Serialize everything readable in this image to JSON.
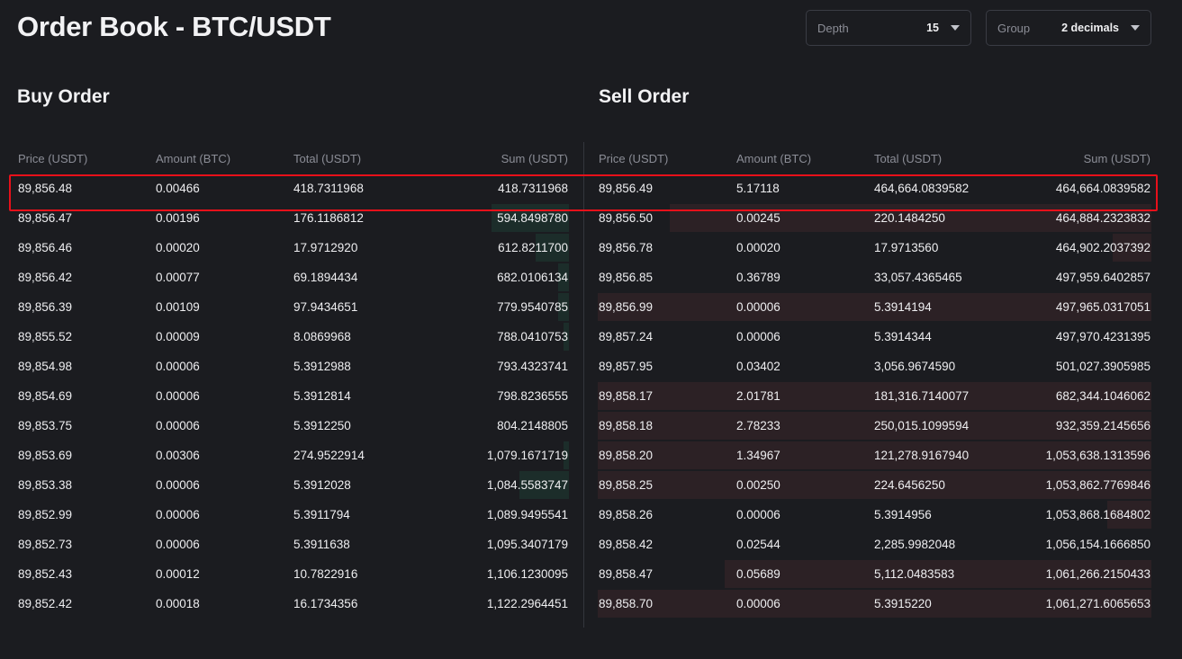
{
  "title": "Order Book - BTC/USDT",
  "controls": {
    "depth": {
      "label": "Depth",
      "value": "15"
    },
    "group": {
      "label": "Group",
      "value": "2 decimals"
    }
  },
  "buy": {
    "title": "Buy Order",
    "headers": [
      "Price (USDT)",
      "Amount (BTC)",
      "Total (USDT)",
      "Sum (USDT)"
    ],
    "depth_color": "#1c2d2a",
    "rows": [
      {
        "price": "89,856.48",
        "amount": "0.00466",
        "total": "418.7311968",
        "sum": "418.7311968",
        "depth": 0
      },
      {
        "price": "89,856.47",
        "amount": "0.00196",
        "total": "176.1186812",
        "sum": "594.8498780",
        "depth": 0.14
      },
      {
        "price": "89,856.46",
        "amount": "0.00020",
        "total": "17.9712920",
        "sum": "612.8211700",
        "depth": 0.06
      },
      {
        "price": "89,856.42",
        "amount": "0.00077",
        "total": "69.1894434",
        "sum": "682.0106134",
        "depth": 0.02
      },
      {
        "price": "89,856.39",
        "amount": "0.00109",
        "total": "97.9434651",
        "sum": "779.9540785",
        "depth": 0.02
      },
      {
        "price": "89,855.52",
        "amount": "0.00009",
        "total": "8.0869968",
        "sum": "788.0410753",
        "depth": 0.01
      },
      {
        "price": "89,854.98",
        "amount": "0.00006",
        "total": "5.3912988",
        "sum": "793.4323741",
        "depth": 0
      },
      {
        "price": "89,854.69",
        "amount": "0.00006",
        "total": "5.3912814",
        "sum": "798.8236555",
        "depth": 0
      },
      {
        "price": "89,853.75",
        "amount": "0.00006",
        "total": "5.3912250",
        "sum": "804.2148805",
        "depth": 0
      },
      {
        "price": "89,853.69",
        "amount": "0.00306",
        "total": "274.9522914",
        "sum": "1,079.1671719",
        "depth": 0.01
      },
      {
        "price": "89,853.38",
        "amount": "0.00006",
        "total": "5.3912028",
        "sum": "1,084.5583747",
        "depth": 0.09
      },
      {
        "price": "89,852.99",
        "amount": "0.00006",
        "total": "5.3911794",
        "sum": "1,089.9495541",
        "depth": 0
      },
      {
        "price": "89,852.73",
        "amount": "0.00006",
        "total": "5.3911638",
        "sum": "1,095.3407179",
        "depth": 0
      },
      {
        "price": "89,852.43",
        "amount": "0.00012",
        "total": "10.7822916",
        "sum": "1,106.1230095",
        "depth": 0
      },
      {
        "price": "89,852.42",
        "amount": "0.00018",
        "total": "16.1734356",
        "sum": "1,122.2964451",
        "depth": 0
      }
    ]
  },
  "sell": {
    "title": "Sell Order",
    "headers": [
      "Price (USDT)",
      "Amount (BTC)",
      "Total (USDT)",
      "Sum (USDT)"
    ],
    "depth_color": "#2c2125",
    "rows": [
      {
        "price": "89,856.49",
        "amount": "5.17118",
        "total": "464,664.0839582",
        "sum": "464,664.0839582",
        "depth": 0
      },
      {
        "price": "89,856.50",
        "amount": "0.00245",
        "total": "220.1484250",
        "sum": "464,884.2323832",
        "depth": 0.87
      },
      {
        "price": "89,856.78",
        "amount": "0.00020",
        "total": "17.9713560",
        "sum": "464,902.2037392",
        "depth": 0.07
      },
      {
        "price": "89,856.85",
        "amount": "0.36789",
        "total": "33,057.4365465",
        "sum": "497,959.6402857",
        "depth": 0
      },
      {
        "price": "89,856.99",
        "amount": "0.00006",
        "total": "5.3914194",
        "sum": "497,965.0317051",
        "depth": 1.0
      },
      {
        "price": "89,857.24",
        "amount": "0.00006",
        "total": "5.3914344",
        "sum": "497,970.4231395",
        "depth": 0
      },
      {
        "price": "89,857.95",
        "amount": "0.03402",
        "total": "3,056.9674590",
        "sum": "501,027.3905985",
        "depth": 0
      },
      {
        "price": "89,858.17",
        "amount": "2.01781",
        "total": "181,316.7140077",
        "sum": "682,344.1046062",
        "depth": 1.0
      },
      {
        "price": "89,858.18",
        "amount": "2.78233",
        "total": "250,015.1099594",
        "sum": "932,359.2145656",
        "depth": 1.0
      },
      {
        "price": "89,858.20",
        "amount": "1.34967",
        "total": "121,278.9167940",
        "sum": "1,053,638.1313596",
        "depth": 1.0
      },
      {
        "price": "89,858.25",
        "amount": "0.00250",
        "total": "224.6456250",
        "sum": "1,053,862.7769846",
        "depth": 1.0
      },
      {
        "price": "89,858.26",
        "amount": "0.00006",
        "total": "5.3914956",
        "sum": "1,053,868.1684802",
        "depth": 0.08
      },
      {
        "price": "89,858.42",
        "amount": "0.02544",
        "total": "2,285.9982048",
        "sum": "1,056,154.1666850",
        "depth": 0
      },
      {
        "price": "89,858.47",
        "amount": "0.05689",
        "total": "5,112.0483583",
        "sum": "1,061,266.2150433",
        "depth": 0.77
      },
      {
        "price": "89,858.70",
        "amount": "0.00006",
        "total": "5.3915220",
        "sum": "1,061,271.6065653",
        "depth": 1.0
      }
    ]
  },
  "highlight_color": "#e8101a"
}
